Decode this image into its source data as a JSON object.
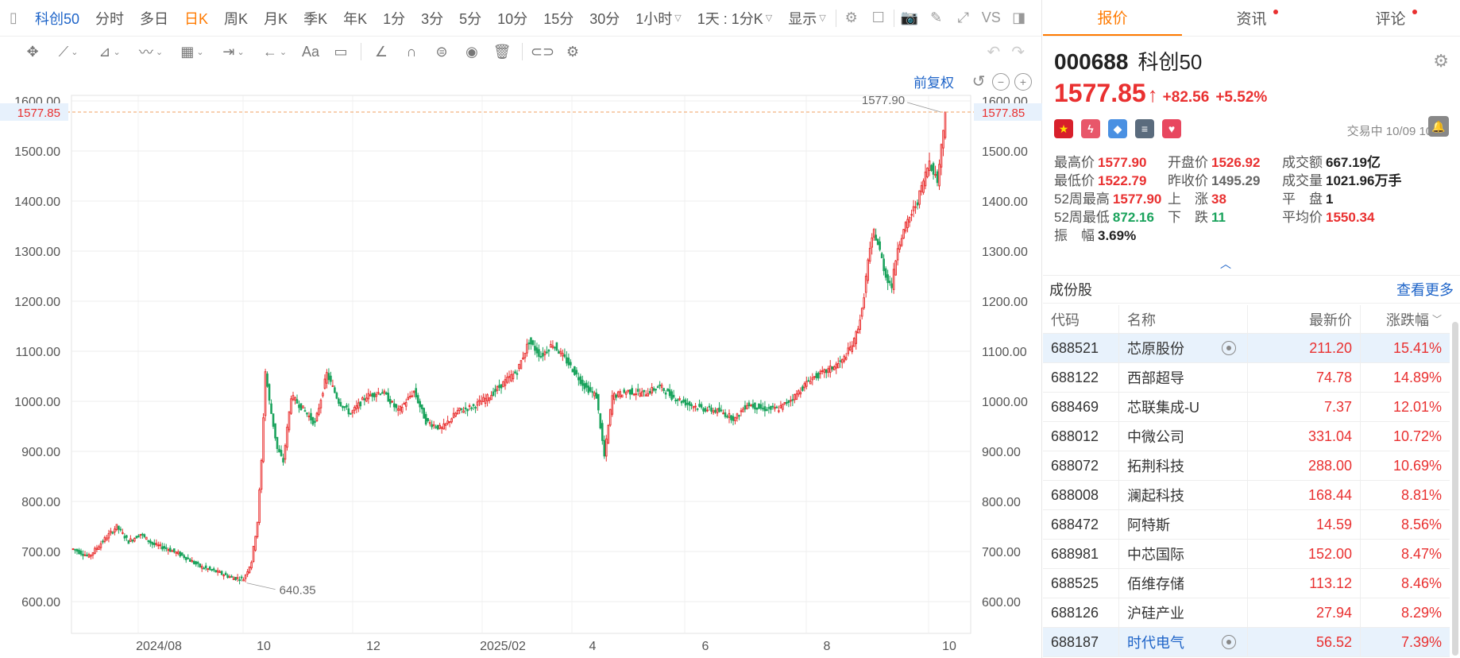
{
  "toolbar": {
    "symbol": "科创50",
    "periods": [
      "分时",
      "多日",
      "日K",
      "周K",
      "月K",
      "季K",
      "年K",
      "1分",
      "3分",
      "5分",
      "10分",
      "15分",
      "30分"
    ],
    "hour_select": "1小时",
    "time_select": "1天 : 1分K",
    "display_select": "显示",
    "vs_label": "VS",
    "text_tool": "Aa"
  },
  "chart": {
    "adjust_label": "前复权",
    "current_price_tag": "1577.85",
    "y_ticks": [
      "1600.00",
      "1500.00",
      "1400.00",
      "1300.00",
      "1200.00",
      "1100.00",
      "1000.00",
      "900.00",
      "800.00",
      "700.00",
      "600.00"
    ],
    "x_ticks": [
      "2024/08",
      "10",
      "12",
      "2025/02",
      "4",
      "6",
      "8",
      "10"
    ],
    "max_label": "1577.90",
    "min_label": "640.35"
  },
  "chart_data": {
    "type": "candlestick",
    "title": "",
    "ylim": [
      575,
      1620
    ],
    "grid": true,
    "ohlc_anchor_closes": [
      [
        0,
        705
      ],
      [
        8,
        690
      ],
      [
        16,
        725
      ],
      [
        22,
        750
      ],
      [
        28,
        720
      ],
      [
        34,
        735
      ],
      [
        40,
        715
      ],
      [
        48,
        705
      ],
      [
        56,
        690
      ],
      [
        64,
        670
      ],
      [
        72,
        660
      ],
      [
        80,
        648
      ],
      [
        86,
        645
      ],
      [
        90,
        680
      ],
      [
        93,
        760
      ],
      [
        95,
        880
      ],
      [
        97,
        1060
      ],
      [
        99,
        1000
      ],
      [
        103,
        905
      ],
      [
        106,
        880
      ],
      [
        110,
        1010
      ],
      [
        116,
        985
      ],
      [
        122,
        955
      ],
      [
        128,
        1055
      ],
      [
        134,
        1000
      ],
      [
        140,
        975
      ],
      [
        148,
        1010
      ],
      [
        156,
        1020
      ],
      [
        164,
        980
      ],
      [
        172,
        1020
      ],
      [
        178,
        960
      ],
      [
        186,
        945
      ],
      [
        194,
        980
      ],
      [
        202,
        990
      ],
      [
        210,
        1010
      ],
      [
        218,
        1040
      ],
      [
        224,
        1060
      ],
      [
        230,
        1120
      ],
      [
        236,
        1090
      ],
      [
        242,
        1115
      ],
      [
        250,
        1075
      ],
      [
        258,
        1030
      ],
      [
        264,
        1010
      ],
      [
        268,
        890
      ],
      [
        272,
        1010
      ],
      [
        280,
        1020
      ],
      [
        288,
        1015
      ],
      [
        296,
        1030
      ],
      [
        302,
        1010
      ],
      [
        310,
        995
      ],
      [
        318,
        985
      ],
      [
        326,
        980
      ],
      [
        334,
        965
      ],
      [
        340,
        995
      ],
      [
        348,
        985
      ],
      [
        356,
        985
      ],
      [
        364,
        1010
      ],
      [
        372,
        1045
      ],
      [
        380,
        1060
      ],
      [
        388,
        1080
      ],
      [
        394,
        1120
      ],
      [
        398,
        1180
      ],
      [
        401,
        1280
      ],
      [
        404,
        1340
      ],
      [
        407,
        1300
      ],
      [
        410,
        1250
      ],
      [
        413,
        1230
      ],
      [
        416,
        1310
      ],
      [
        420,
        1350
      ],
      [
        426,
        1400
      ],
      [
        432,
        1480
      ],
      [
        436,
        1440
      ],
      [
        440,
        1577.85
      ]
    ],
    "max": 1577.9,
    "min": 640.35,
    "last": 1577.85
  },
  "panel": {
    "tabs": [
      {
        "label": "报价",
        "dot": false
      },
      {
        "label": "资讯",
        "dot": true
      },
      {
        "label": "评论",
        "dot": true
      }
    ],
    "code": "000688",
    "name": "科创50",
    "price": "1577.85",
    "arrow": "↑",
    "change": "+82.56",
    "change_pct": "+5.52%",
    "status": "交易中 10/09 10:28",
    "stats": {
      "high_label": "最高价",
      "high": "1577.90",
      "open_label": "开盘价",
      "open": "1526.92",
      "amount_label": "成交额",
      "amount": "667.19亿",
      "low_label": "最低价",
      "low": "1522.79",
      "prev_label": "昨收价",
      "prev": "1495.29",
      "volume_label": "成交量",
      "volume": "1021.96万手",
      "w52h_label": "52周最高",
      "w52h": "1577.90",
      "up_label": "上　涨",
      "up": "38",
      "flat_label": "平　盘",
      "flat": "1",
      "w52l_label": "52周最低",
      "w52l": "872.16",
      "down_label": "下　跌",
      "down": "11",
      "avg_label": "平均价",
      "avg": "1550.34",
      "amp_label": "振　幅",
      "amp": "3.69%"
    },
    "constituents_title": "成份股",
    "more_label": "查看更多",
    "table_headers": {
      "code": "代码",
      "name": "名称",
      "price": "最新价",
      "pct": "涨跌幅"
    },
    "rows": [
      {
        "code": "688521",
        "name": "芯原股份",
        "price": "211.20",
        "pct": "15.41%",
        "hl": true,
        "eye": true
      },
      {
        "code": "688122",
        "name": "西部超导",
        "price": "74.78",
        "pct": "14.89%"
      },
      {
        "code": "688469",
        "name": "芯联集成-U",
        "price": "7.37",
        "pct": "12.01%"
      },
      {
        "code": "688012",
        "name": "中微公司",
        "price": "331.04",
        "pct": "10.72%"
      },
      {
        "code": "688072",
        "name": "拓荆科技",
        "price": "288.00",
        "pct": "10.69%"
      },
      {
        "code": "688008",
        "name": "澜起科技",
        "price": "168.44",
        "pct": "8.81%"
      },
      {
        "code": "688472",
        "name": "阿特斯",
        "price": "14.59",
        "pct": "8.56%"
      },
      {
        "code": "688981",
        "name": "中芯国际",
        "price": "152.00",
        "pct": "8.47%"
      },
      {
        "code": "688525",
        "name": "佰维存储",
        "price": "113.12",
        "pct": "8.46%"
      },
      {
        "code": "688126",
        "name": "沪硅产业",
        "price": "27.94",
        "pct": "8.29%"
      },
      {
        "code": "688187",
        "name": "时代电气",
        "price": "56.52",
        "pct": "7.39%",
        "hl": true,
        "eye": true,
        "blue_name": true
      }
    ]
  }
}
